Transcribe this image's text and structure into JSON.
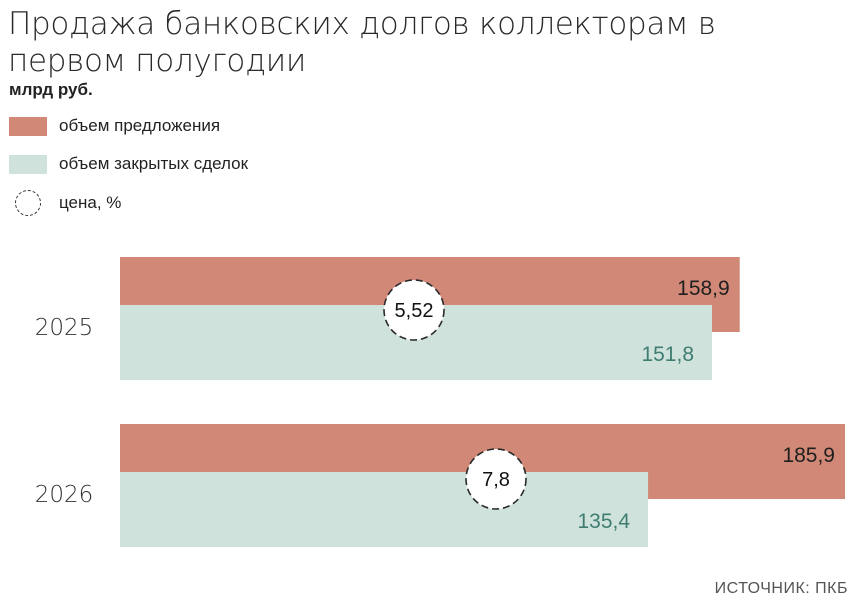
{
  "title": "Продажа банковских долгов коллекторам в первом полугодии",
  "unit": "млрд руб.",
  "source": "ИСТОЧНИК: ПКБ",
  "colors": {
    "offer": "#d18876",
    "closed": "#cfe2db",
    "closed_text": "#3f7d72"
  },
  "legend": [
    {
      "label": "объем предложения",
      "icon": "offer-swatch"
    },
    {
      "label": "объем закрытых сделок",
      "icon": "closed-swatch"
    },
    {
      "label": "цена, %",
      "icon": "dashed-circle-icon"
    }
  ],
  "chart_data": {
    "type": "bar",
    "orientation": "horizontal",
    "categories": [
      "2025",
      "2026"
    ],
    "series": [
      {
        "name": "объем предложения",
        "values": [
          158.9,
          185.9
        ],
        "labels": [
          "158,9",
          "185,9"
        ]
      },
      {
        "name": "объем закрытых сделок",
        "values": [
          151.8,
          135.4
        ],
        "labels": [
          "151,8",
          "135,4"
        ]
      },
      {
        "name": "цена, %",
        "values": [
          5.52,
          7.8
        ],
        "labels": [
          "5,52",
          "7,8"
        ]
      }
    ]
  }
}
